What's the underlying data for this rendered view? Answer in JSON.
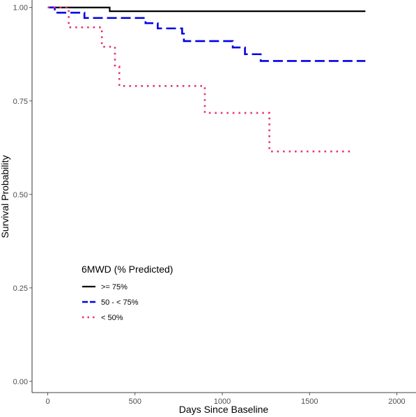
{
  "chart_data": {
    "type": "line",
    "step": true,
    "xlabel": "Days Since Baseline",
    "ylabel": "Survival Probability",
    "xlim": [
      -90,
      2110
    ],
    "ylim": [
      -0.03,
      1.02
    ],
    "xticks": [
      0,
      500,
      1000,
      1500,
      2000
    ],
    "yticks": [
      0.0,
      0.25,
      0.5,
      0.75,
      1.0
    ],
    "ytick_labels": [
      "0.00",
      "0.25",
      "0.50",
      "0.75",
      "1.00"
    ],
    "grid": false,
    "legend": {
      "title": "6MWD (% Predicted)",
      "position": "bottom-left"
    },
    "series": [
      {
        "name": ">= 75%",
        "color": "#000000",
        "dash": "solid",
        "points": [
          [
            0,
            1.0
          ],
          [
            355,
            1.0
          ],
          [
            355,
            0.99
          ],
          [
            1820,
            0.99
          ]
        ]
      },
      {
        "name": "50 - < 75%",
        "color": "#0000e6",
        "dash": "dashed",
        "points": [
          [
            0,
            1.0
          ],
          [
            40,
            1.0
          ],
          [
            40,
            0.986
          ],
          [
            210,
            0.986
          ],
          [
            210,
            0.972
          ],
          [
            560,
            0.972
          ],
          [
            560,
            0.958
          ],
          [
            630,
            0.958
          ],
          [
            630,
            0.944
          ],
          [
            770,
            0.944
          ],
          [
            770,
            0.93
          ],
          [
            780,
            0.93
          ],
          [
            780,
            0.91
          ],
          [
            1060,
            0.91
          ],
          [
            1060,
            0.893
          ],
          [
            1130,
            0.893
          ],
          [
            1130,
            0.875
          ],
          [
            1220,
            0.875
          ],
          [
            1220,
            0.857
          ],
          [
            1820,
            0.857
          ]
        ]
      },
      {
        "name": "< 50%",
        "color": "#e8306a",
        "dash": "dotted",
        "points": [
          [
            0,
            1.0
          ],
          [
            120,
            1.0
          ],
          [
            120,
            0.947
          ],
          [
            310,
            0.947
          ],
          [
            310,
            0.895
          ],
          [
            385,
            0.895
          ],
          [
            385,
            0.842
          ],
          [
            410,
            0.842
          ],
          [
            410,
            0.79
          ],
          [
            900,
            0.79
          ],
          [
            900,
            0.718
          ],
          [
            1270,
            0.718
          ],
          [
            1270,
            0.615
          ],
          [
            1750,
            0.615
          ]
        ]
      }
    ]
  }
}
